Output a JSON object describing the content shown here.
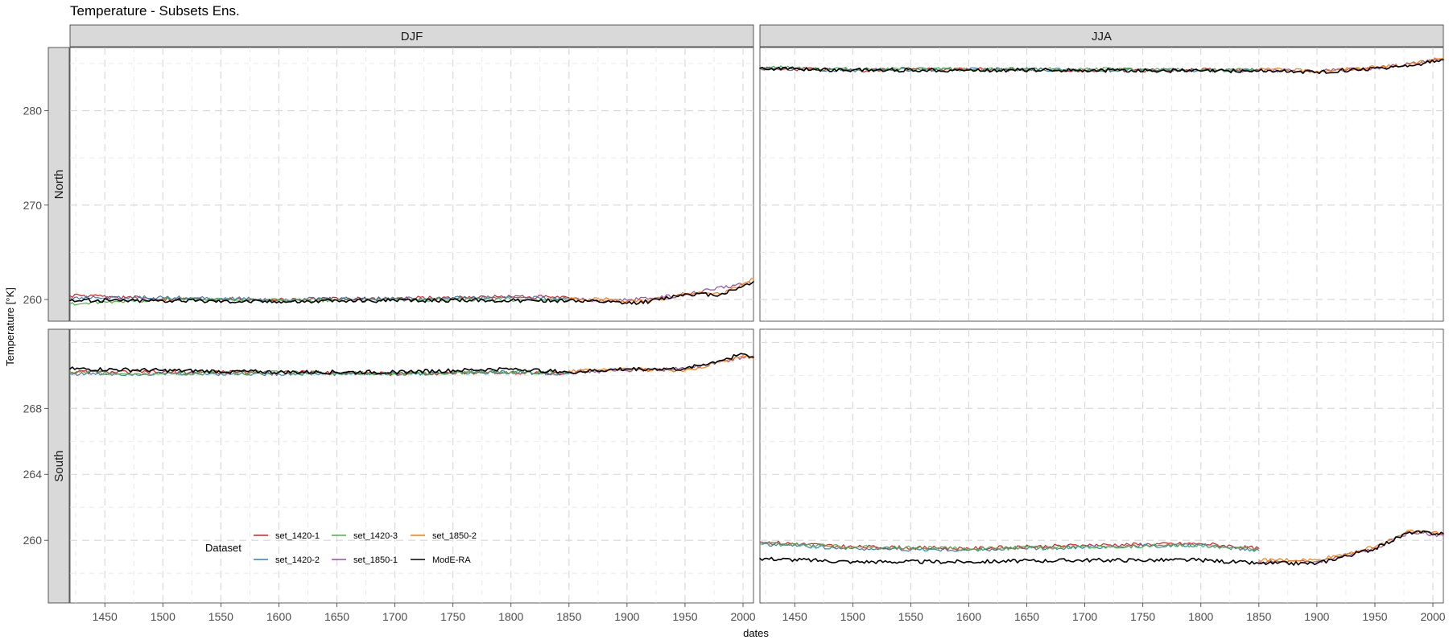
{
  "chart_data": {
    "type": "line",
    "title": "Temperature - Subsets Ens.",
    "xlabel": "dates",
    "ylabel": "Temperature [°K]",
    "x_range": [
      1420,
      2009
    ],
    "x_ticks": [
      1450,
      1500,
      1550,
      1600,
      1650,
      1700,
      1750,
      1800,
      1850,
      1900,
      1950,
      2000
    ],
    "grid": true,
    "columns": [
      "DJF",
      "JJA"
    ],
    "rows": [
      "North",
      "South"
    ],
    "rows_ylim": {
      "North": {
        "ylim": [
          257.7,
          286.7
        ],
        "ticks": [
          260,
          270,
          280
        ]
      },
      "South": {
        "ylim": [
          256.2,
          272.8
        ],
        "ticks": [
          260,
          264,
          268
        ]
      }
    },
    "legend": {
      "title": "Dataset",
      "placement": "bottom-left",
      "entries": [
        {
          "name": "set_1420-1",
          "color": "#e41a1c"
        },
        {
          "name": "set_1420-2",
          "color": "#377eb8"
        },
        {
          "name": "set_1420-3",
          "color": "#4daf4a"
        },
        {
          "name": "set_1850-1",
          "color": "#984ea3"
        },
        {
          "name": "set_1850-2",
          "color": "#ff7f00"
        },
        {
          "name": "ModE-RA",
          "color": "#000000"
        }
      ]
    },
    "panels": [
      {
        "column": "DJF",
        "row": "North",
        "series": [
          {
            "name": "set_1420-1",
            "x": [
              1420,
              1500,
              1600,
              1700,
              1800,
              1850
            ],
            "y": [
              260.4,
              260.1,
              260.0,
              260.1,
              260.3,
              260.2
            ]
          },
          {
            "name": "set_1420-2",
            "x": [
              1420,
              1500,
              1600,
              1700,
              1800,
              1850
            ],
            "y": [
              260.2,
              260.2,
              260.0,
              260.1,
              260.2,
              260.1
            ]
          },
          {
            "name": "set_1420-3",
            "x": [
              1420,
              1500,
              1600,
              1700,
              1800,
              1850
            ],
            "y": [
              259.5,
              260.0,
              259.9,
              260.0,
              260.0,
              259.9
            ]
          },
          {
            "name": "set_1850-1",
            "x": [
              1850,
              1900,
              1950,
              2009
            ],
            "y": [
              260.0,
              259.9,
              260.5,
              261.9
            ]
          },
          {
            "name": "set_1850-2",
            "x": [
              1850,
              1880,
              1900,
              1920,
              1950,
              1980,
              2000,
              2009
            ],
            "y": [
              260.1,
              260.0,
              259.8,
              259.9,
              260.6,
              260.6,
              261.6,
              262.2
            ]
          },
          {
            "name": "ModE-RA",
            "x": [
              1420,
              1500,
              1600,
              1700,
              1800,
              1850,
              1900,
              1920,
              1950,
              1980,
              2000,
              2009
            ],
            "y": [
              259.9,
              259.9,
              259.8,
              259.9,
              259.9,
              259.9,
              259.6,
              259.8,
              260.6,
              260.5,
              261.4,
              261.9
            ]
          }
        ]
      },
      {
        "column": "JJA",
        "row": "North",
        "series": [
          {
            "name": "set_1420-1",
            "x": [
              1420,
              1500,
              1600,
              1700,
              1800,
              1850
            ],
            "y": [
              284.5,
              284.3,
              284.4,
              284.3,
              284.3,
              284.3
            ]
          },
          {
            "name": "set_1420-2",
            "x": [
              1420,
              1500,
              1600,
              1700,
              1800,
              1850
            ],
            "y": [
              284.5,
              284.3,
              284.4,
              284.3,
              284.3,
              284.3
            ]
          },
          {
            "name": "set_1420-3",
            "x": [
              1420,
              1500,
              1600,
              1700,
              1800,
              1850
            ],
            "y": [
              284.6,
              284.4,
              284.4,
              284.4,
              284.3,
              284.3
            ]
          },
          {
            "name": "set_1850-1",
            "x": [
              1850,
              1900,
              1950,
              2009
            ],
            "y": [
              284.3,
              284.2,
              284.5,
              285.4
            ]
          },
          {
            "name": "set_1850-2",
            "x": [
              1850,
              1900,
              1950,
              1980,
              2009
            ],
            "y": [
              284.4,
              284.2,
              284.6,
              284.9,
              285.6
            ]
          },
          {
            "name": "ModE-RA",
            "x": [
              1420,
              1500,
              1600,
              1700,
              1800,
              1850,
              1900,
              1950,
              1980,
              2009
            ],
            "y": [
              284.5,
              284.3,
              284.3,
              284.3,
              284.2,
              284.2,
              284.1,
              284.5,
              284.8,
              285.4
            ]
          }
        ]
      },
      {
        "column": "DJF",
        "row": "South",
        "series": [
          {
            "name": "set_1420-1",
            "x": [
              1420,
              1500,
              1600,
              1700,
              1800,
              1850
            ],
            "y": [
              270.2,
              270.2,
              270.2,
              270.1,
              270.2,
              270.1
            ]
          },
          {
            "name": "set_1420-2",
            "x": [
              1420,
              1500,
              1600,
              1700,
              1800,
              1850
            ],
            "y": [
              270.1,
              270.1,
              270.1,
              270.1,
              270.2,
              270.1
            ]
          },
          {
            "name": "set_1420-3",
            "x": [
              1420,
              1500,
              1600,
              1700,
              1800,
              1850
            ],
            "y": [
              270.2,
              270.1,
              270.2,
              270.1,
              270.2,
              270.2
            ]
          },
          {
            "name": "set_1850-1",
            "x": [
              1850,
              1900,
              1950,
              2009
            ],
            "y": [
              270.2,
              270.3,
              270.4,
              271.2
            ]
          },
          {
            "name": "set_1850-2",
            "x": [
              1850,
              1900,
              1950,
              1980,
              2000,
              2009
            ],
            "y": [
              270.3,
              270.4,
              270.3,
              270.8,
              271.2,
              271.0
            ]
          },
          {
            "name": "ModE-RA",
            "x": [
              1420,
              1500,
              1600,
              1700,
              1800,
              1850,
              1900,
              1950,
              1980,
              2000,
              2009
            ],
            "y": [
              270.4,
              270.3,
              270.2,
              270.2,
              270.4,
              270.2,
              270.4,
              270.4,
              270.9,
              271.3,
              271.1
            ]
          }
        ]
      },
      {
        "column": "JJA",
        "row": "South",
        "series": [
          {
            "name": "set_1420-1",
            "x": [
              1420,
              1500,
              1600,
              1700,
              1800,
              1850
            ],
            "y": [
              259.9,
              259.6,
              259.5,
              259.7,
              259.8,
              259.5
            ]
          },
          {
            "name": "set_1420-2",
            "x": [
              1420,
              1500,
              1600,
              1700,
              1800,
              1850
            ],
            "y": [
              259.8,
              259.5,
              259.4,
              259.6,
              259.7,
              259.4
            ]
          },
          {
            "name": "set_1420-3",
            "x": [
              1420,
              1500,
              1600,
              1700,
              1800,
              1850
            ],
            "y": [
              259.8,
              259.6,
              259.5,
              259.6,
              259.7,
              259.5
            ]
          },
          {
            "name": "set_1850-1",
            "x": [
              1850,
              1900,
              1950,
              1980,
              2009
            ],
            "y": [
              258.7,
              258.7,
              259.5,
              260.5,
              260.3
            ]
          },
          {
            "name": "set_1850-2",
            "x": [
              1850,
              1900,
              1950,
              1980,
              2009
            ],
            "y": [
              258.8,
              258.8,
              259.6,
              260.6,
              260.4
            ]
          },
          {
            "name": "ModE-RA",
            "x": [
              1420,
              1500,
              1600,
              1700,
              1800,
              1850,
              1900,
              1950,
              1980,
              2009
            ],
            "y": [
              258.9,
              258.7,
              258.7,
              258.8,
              258.8,
              258.6,
              258.6,
              259.5,
              260.5,
              260.4
            ]
          }
        ]
      }
    ]
  }
}
